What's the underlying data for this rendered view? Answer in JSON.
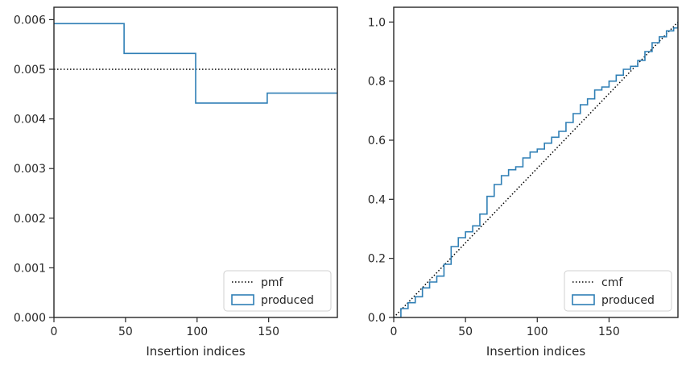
{
  "chart_data": [
    {
      "type": "step",
      "xlabel": "Insertion indices",
      "ylabel": "",
      "xlim": [
        0,
        198
      ],
      "ylim": [
        0,
        0.00625
      ],
      "xticks": [
        0,
        50,
        100,
        150
      ],
      "xtick_labels": [
        "0",
        "50",
        "100",
        "150"
      ],
      "yticks": [
        0,
        0.001,
        0.002,
        0.003,
        0.004,
        0.005,
        0.006
      ],
      "ytick_labels": [
        "0.000",
        "0.001",
        "0.002",
        "0.003",
        "0.004",
        "0.005",
        "0.006"
      ],
      "legend_placement": "lower right",
      "series": [
        {
          "name": "pmf",
          "style": "dotted",
          "color": "#000000",
          "x": [
            0,
            198
          ],
          "y": [
            0.005,
            0.005
          ]
        },
        {
          "name": "produced",
          "style": "step-histogram",
          "color": "#2f7fb5",
          "bins": [
            {
              "x0": 0,
              "x1": 49,
              "y": 0.00592
            },
            {
              "x0": 49,
              "x1": 99,
              "y": 0.00532
            },
            {
              "x0": 99,
              "x1": 149,
              "y": 0.00432
            },
            {
              "x0": 149,
              "x1": 198,
              "y": 0.00452
            }
          ]
        }
      ]
    },
    {
      "type": "step",
      "xlabel": "Insertion indices",
      "ylabel": "",
      "xlim": [
        0,
        198
      ],
      "ylim": [
        0,
        1.05
      ],
      "xticks": [
        0,
        50,
        100,
        150
      ],
      "xtick_labels": [
        "0",
        "50",
        "100",
        "150"
      ],
      "yticks": [
        0,
        0.2,
        0.4,
        0.6,
        0.8,
        1.0
      ],
      "ytick_labels": [
        "0.0",
        "0.2",
        "0.4",
        "0.6",
        "0.8",
        "1.0"
      ],
      "legend_placement": "lower right",
      "series": [
        {
          "name": "cmf",
          "style": "dotted",
          "color": "#000000",
          "x": [
            0,
            198
          ],
          "y": [
            0,
            1.0
          ]
        },
        {
          "name": "produced",
          "style": "step-cumulative",
          "color": "#2f7fb5",
          "x": [
            0,
            5,
            10,
            15,
            20,
            25,
            30,
            35,
            40,
            45,
            50,
            55,
            60,
            65,
            70,
            75,
            80,
            85,
            90,
            95,
            100,
            105,
            110,
            115,
            120,
            125,
            130,
            135,
            140,
            145,
            150,
            155,
            160,
            165,
            170,
            175,
            180,
            185,
            190,
            195,
            198
          ],
          "y": [
            0,
            0.03,
            0.05,
            0.07,
            0.1,
            0.12,
            0.14,
            0.18,
            0.24,
            0.27,
            0.29,
            0.31,
            0.35,
            0.41,
            0.45,
            0.48,
            0.5,
            0.51,
            0.54,
            0.56,
            0.57,
            0.59,
            0.61,
            0.63,
            0.66,
            0.69,
            0.72,
            0.74,
            0.77,
            0.78,
            0.8,
            0.82,
            0.84,
            0.85,
            0.87,
            0.9,
            0.93,
            0.95,
            0.97,
            0.98,
            1.0
          ]
        }
      ]
    }
  ]
}
